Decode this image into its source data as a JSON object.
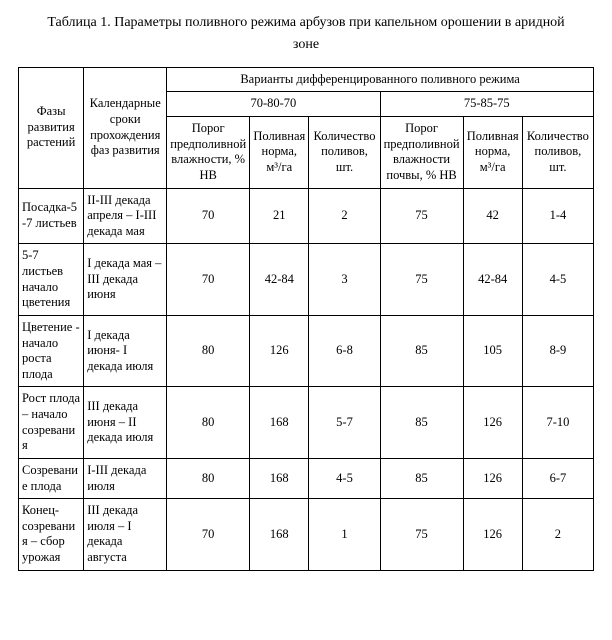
{
  "caption_line1": "Таблица 1. Параметры поливного режима арбузов при капельном орошении в аридной",
  "caption_line2": "зоне",
  "headers": {
    "phase": "Фазы развития растений",
    "calendar": "Календарные сроки прохождения фаз развития",
    "variants": "Варианты дифференцированного поливного режима",
    "group_a": "70-80-70",
    "group_b": "75-85-75",
    "threshold_a": "Порог предполивной влажности, % НВ",
    "norm_a": "Поливная норма, м³/га",
    "count_a": "Количество поливов, шт.",
    "threshold_b": "Порог предполивной влажности почвы, % НВ",
    "norm_b": "Поливная норма, м³/га",
    "count_b": "Количество поливов, шт."
  },
  "rows": [
    {
      "phase": "Посадка-5-7 листьев",
      "calendar": "II-III декада апреля – I-III декада мая",
      "t_a": "70",
      "n_a": "21",
      "c_a": "2",
      "t_b": "75",
      "n_b": "42",
      "c_b": "1-4"
    },
    {
      "phase": "5-7 листьев начало цветения",
      "calendar": "I декада мая – III декада июня",
      "t_a": "70",
      "n_a": "42-84",
      "c_a": "3",
      "t_b": "75",
      "n_b": "42-84",
      "c_b": "4-5"
    },
    {
      "phase": "Цветение - начало роста плода",
      "calendar": "I декада июня- I декада июля",
      "t_a": "80",
      "n_a": "126",
      "c_a": "6-8",
      "t_b": "85",
      "n_b": "105",
      "c_b": "8-9"
    },
    {
      "phase": "Рост плода – начало созревания",
      "calendar": "III декада июня – II декада июля",
      "t_a": "80",
      "n_a": "168",
      "c_a": "5-7",
      "t_b": "85",
      "n_b": "126",
      "c_b": "7-10"
    },
    {
      "phase": "Созревание плода",
      "calendar": "I-III декада июля",
      "t_a": "80",
      "n_a": "168",
      "c_a": "4-5",
      "t_b": "85",
      "n_b": "126",
      "c_b": "6-7"
    },
    {
      "phase": "Конец-созревания – сбор урожая",
      "calendar": "III декада июля – I декада августа",
      "t_a": "70",
      "n_a": "168",
      "c_a": "1",
      "t_b": "75",
      "n_b": "126",
      "c_b": "2"
    }
  ]
}
